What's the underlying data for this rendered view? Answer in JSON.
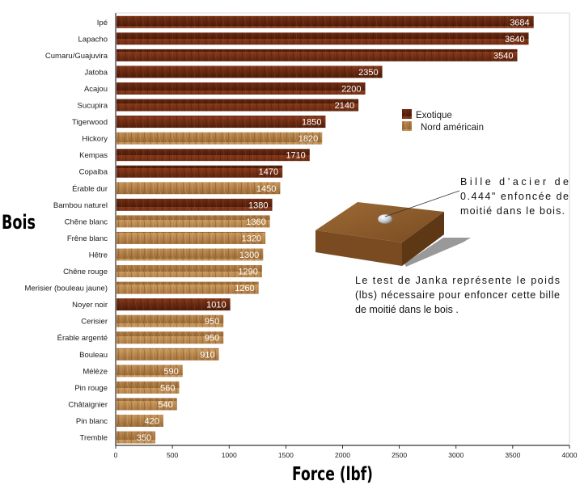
{
  "chart_data": {
    "type": "bar",
    "orientation": "horizontal",
    "categories": [
      "Ipé",
      "Lapacho",
      "Cumaru/Guajuvira",
      "Jatoba",
      "Acajou",
      "Sucupira",
      "Tigerwood",
      "Hickory",
      "Kempas",
      "Copaiba",
      "Érable dur",
      "Bambou naturel",
      "Chêne blanc",
      "Frêne blanc",
      "Hêtre",
      "Chêne rouge",
      "Merisier (bouleau jaune)",
      "Noyer noir",
      "Cerisier",
      "Érable argenté",
      "Bouleau",
      "Mélèze",
      "Pin rouge",
      "Châtaignier",
      "Pin blanc",
      "Tremble"
    ],
    "values": [
      3684,
      3640,
      3540,
      2350,
      2200,
      2140,
      1850,
      1820,
      1710,
      1470,
      1450,
      1380,
      1360,
      1320,
      1300,
      1290,
      1260,
      1010,
      950,
      950,
      910,
      590,
      560,
      540,
      420,
      350
    ],
    "groups": [
      "Exotique",
      "Exotique",
      "Exotique",
      "Exotique",
      "Exotique",
      "Exotique",
      "Exotique",
      "Nord américain",
      "Exotique",
      "Exotique",
      "Nord américain",
      "Exotique",
      "Nord américain",
      "Nord américain",
      "Nord américain",
      "Nord américain",
      "Nord américain",
      "Exotique",
      "Nord américain",
      "Nord américain",
      "Nord américain",
      "Nord américain",
      "Nord américain",
      "Nord américain",
      "Nord américain",
      "Nord américain"
    ],
    "xlabel": "Force (lbf)",
    "ylabel": "Bois",
    "xlim": [
      0,
      4000
    ],
    "xticks": [
      0,
      500,
      1000,
      1500,
      2000,
      2500,
      3000,
      3500,
      4000
    ],
    "legend": {
      "placement": "right",
      "entries": [
        {
          "name": "Exotique",
          "color": "#6b2a12"
        },
        {
          "name": "Nord américain",
          "color": "#b8874e"
        }
      ]
    },
    "annotations": {
      "ball_lines": [
        "Bille d’acier de",
        "0.444\" enfoncée de",
        "moitié dans le bois."
      ],
      "test_lines": [
        "Le test de Janka représente le poids",
        "(lbs) nécessaire pour enfoncer cette bille",
        "de moitié dans le bois ."
      ]
    }
  }
}
